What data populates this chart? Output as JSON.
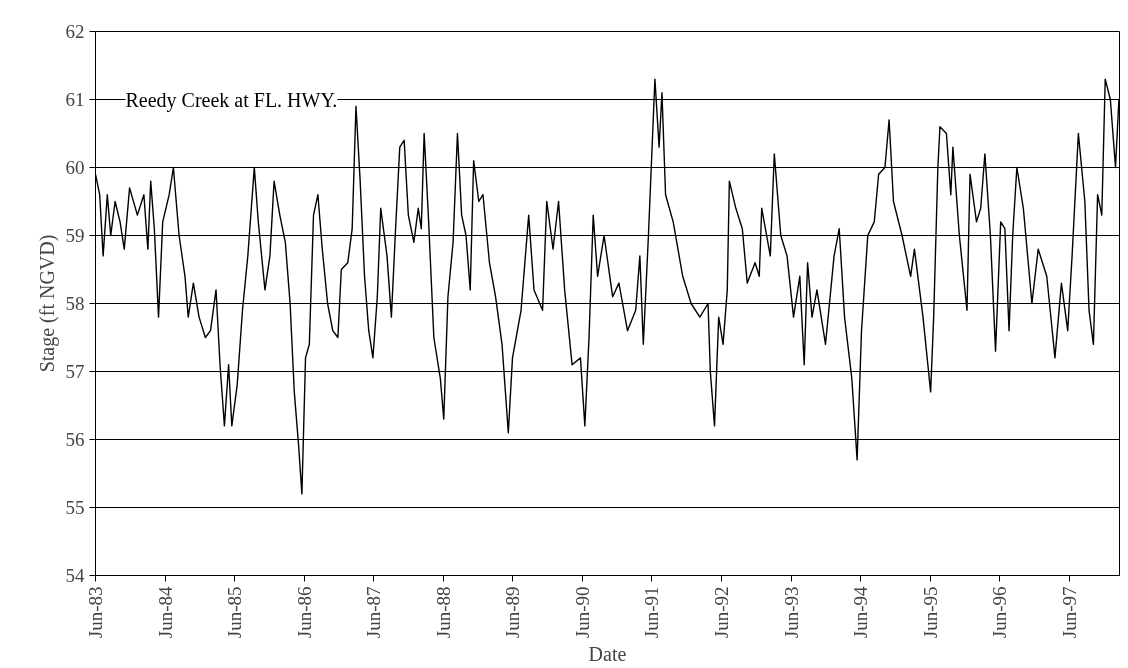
{
  "chart_data": {
    "type": "line",
    "title": "Reedy Creek at FL. HWY.",
    "xlabel": "Date",
    "ylabel": "Stage (ft NGVD)",
    "color": "#000000",
    "grid": "y",
    "xlim": [
      "1983-06-01",
      "1998-02-20"
    ],
    "ylim": [
      54,
      62
    ],
    "yticks": [
      54,
      55,
      56,
      57,
      58,
      59,
      60,
      61,
      62
    ],
    "xticks": [
      {
        "value": "1983-06-01",
        "label": "Jun-83"
      },
      {
        "value": "1984-06-01",
        "label": "Jun-84"
      },
      {
        "value": "1985-06-01",
        "label": "Jun-85"
      },
      {
        "value": "1986-06-01",
        "label": "Jun-86"
      },
      {
        "value": "1987-06-01",
        "label": "Jun-87"
      },
      {
        "value": "1988-06-01",
        "label": "Jun-88"
      },
      {
        "value": "1989-06-01",
        "label": "Jun-89"
      },
      {
        "value": "1990-06-01",
        "label": "Jun-90"
      },
      {
        "value": "1991-06-01",
        "label": "Jun-91"
      },
      {
        "value": "1992-06-01",
        "label": "Jun-92"
      },
      {
        "value": "1993-06-01",
        "label": "Jun-93"
      },
      {
        "value": "1994-06-01",
        "label": "Jun-94"
      },
      {
        "value": "1995-06-01",
        "label": "Jun-95"
      },
      {
        "value": "1996-06-01",
        "label": "Jun-96"
      },
      {
        "value": "1997-06-01",
        "label": "Jun-97"
      }
    ],
    "x": [
      "1983-06-01",
      "1983-06-23",
      "1983-07-11",
      "1983-08-02",
      "1983-08-20",
      "1983-09-12",
      "1983-10-08",
      "1983-10-30",
      "1983-11-27",
      "1984-01-07",
      "1984-02-10",
      "1984-03-02",
      "1984-03-17",
      "1984-04-05",
      "1984-04-27",
      "1984-05-19",
      "1984-06-22",
      "1984-07-14",
      "1984-08-13",
      "1984-09-13",
      "1984-09-30",
      "1984-10-27",
      "1984-11-26",
      "1984-12-29",
      "1985-01-25",
      "1985-02-23",
      "1985-03-16",
      "1985-04-08",
      "1985-04-30",
      "1985-05-17",
      "1985-06-14",
      "1985-07-12",
      "1985-08-09",
      "1985-09-12",
      "1985-10-03",
      "1985-11-07",
      "1985-12-03",
      "1985-12-25",
      "1986-01-24",
      "1986-02-22",
      "1986-03-19",
      "1986-04-10",
      "1986-05-03",
      "1986-05-20",
      "1986-06-08",
      "1986-06-28",
      "1986-07-20",
      "1986-08-12",
      "1986-09-04",
      "1986-10-02",
      "1986-10-29",
      "1986-11-25",
      "1986-12-13",
      "1987-01-16",
      "1987-02-08",
      "1987-02-28",
      "1987-03-22",
      "1987-04-14",
      "1987-05-06",
      "1987-05-28",
      "1987-06-20",
      "1987-07-08",
      "1987-08-10",
      "1987-09-02",
      "1987-09-24",
      "1987-10-16",
      "1987-11-08",
      "1987-11-30",
      "1987-12-29",
      "1988-01-21",
      "1988-02-06",
      "1988-02-21",
      "1988-03-14",
      "1988-04-12",
      "1988-05-16",
      "1988-06-03",
      "1988-06-25",
      "1988-07-22",
      "1988-08-14",
      "1988-09-05",
      "1988-09-28",
      "1988-10-20",
      "1988-11-07",
      "1988-12-04",
      "1988-12-26",
      "1989-01-29",
      "1989-03-02",
      "1989-04-05",
      "1989-05-08",
      "1989-05-30",
      "1989-07-14",
      "1989-08-23",
      "1989-09-20",
      "1989-11-04",
      "1989-11-26",
      "1989-12-29",
      "1990-01-27",
      "1990-02-28",
      "1990-04-08",
      "1990-05-22",
      "1990-06-14",
      "1990-07-06",
      "1990-07-28",
      "1990-08-20",
      "1990-09-23",
      "1990-11-07",
      "1990-12-10",
      "1991-01-24",
      "1991-03-08",
      "1991-03-30",
      "1991-04-17",
      "1991-05-14",
      "1991-06-17",
      "1991-07-09",
      "1991-07-24",
      "1991-08-12",
      "1991-09-21",
      "1991-11-10",
      "1991-12-24",
      "1992-02-08",
      "1992-03-22",
      "1992-04-03",
      "1992-04-25",
      "1992-05-17",
      "1992-06-09",
      "1992-07-01",
      "1992-07-12",
      "1992-08-15",
      "1992-09-18",
      "1992-10-14",
      "1992-11-24",
      "1992-12-16",
      "1992-12-29",
      "1993-02-12",
      "1993-03-05",
      "1993-04-08",
      "1993-05-11",
      "1993-06-14",
      "1993-07-17",
      "1993-08-09",
      "1993-08-27",
      "1993-09-19",
      "1993-10-15",
      "1993-11-29",
      "1994-01-13",
      "1994-02-09",
      "1994-03-09",
      "1994-04-16",
      "1994-05-14",
      "1994-06-06",
      "1994-07-09",
      "1994-08-12",
      "1994-09-04",
      "1994-10-07",
      "1994-10-29",
      "1994-11-21",
      "1995-01-05",
      "1995-02-19",
      "1995-03-11",
      "1995-04-25",
      "1995-06-04",
      "1995-06-20",
      "1995-07-12",
      "1995-07-23",
      "1995-08-26",
      "1995-09-18",
      "1995-09-29",
      "1995-11-02",
      "1995-12-12",
      "1995-12-28",
      "1996-01-31",
      "1996-02-22",
      "1996-03-15",
      "1996-04-13",
      "1996-05-10",
      "1996-06-06",
      "1996-06-28",
      "1996-07-20",
      "1996-08-08",
      "1996-08-30",
      "1996-10-03",
      "1996-11-17",
      "1996-12-20",
      "1997-02-03",
      "1997-03-18",
      "1997-04-21",
      "1997-05-24",
      "1997-06-16",
      "1997-07-19",
      "1997-08-22",
      "1997-09-13",
      "1997-10-06",
      "1997-10-28",
      "1997-11-19",
      "1997-12-07",
      "1998-01-03",
      "1998-01-30",
      "1998-02-17"
    ],
    "values": [
      59.9,
      59.6,
      58.7,
      59.6,
      59.0,
      59.5,
      59.2,
      58.8,
      59.7,
      59.3,
      59.6,
      58.8,
      59.8,
      59.1,
      57.8,
      59.2,
      59.6,
      60.0,
      59.0,
      58.4,
      57.8,
      58.3,
      57.8,
      57.5,
      57.6,
      58.2,
      57.1,
      56.2,
      57.1,
      56.2,
      56.8,
      57.9,
      58.7,
      60.0,
      59.2,
      58.2,
      58.7,
      59.8,
      59.3,
      58.9,
      58.0,
      56.7,
      55.9,
      55.2,
      57.2,
      57.4,
      59.3,
      59.6,
      58.8,
      58.0,
      57.6,
      57.5,
      58.5,
      58.6,
      59.1,
      60.9,
      59.8,
      58.4,
      57.6,
      57.2,
      58.1,
      59.4,
      58.7,
      57.8,
      59.1,
      60.3,
      60.4,
      59.3,
      58.9,
      59.4,
      59.1,
      60.5,
      59.3,
      57.5,
      56.9,
      56.3,
      58.1,
      58.9,
      60.5,
      59.3,
      59.0,
      58.2,
      60.1,
      59.5,
      59.6,
      58.6,
      58.1,
      57.4,
      56.1,
      57.2,
      57.9,
      59.3,
      58.2,
      57.9,
      59.5,
      58.8,
      59.5,
      58.2,
      57.1,
      57.2,
      56.2,
      57.5,
      59.3,
      58.4,
      59.0,
      58.1,
      58.3,
      57.6,
      57.9,
      58.7,
      57.4,
      59.0,
      61.3,
      60.3,
      61.1,
      59.6,
      59.2,
      58.4,
      58.0,
      57.8,
      58.0,
      57.0,
      56.2,
      57.8,
      57.4,
      58.2,
      59.8,
      59.4,
      59.1,
      58.3,
      58.6,
      58.4,
      59.4,
      58.7,
      60.2,
      59.0,
      58.7,
      57.8,
      58.4,
      57.1,
      58.6,
      57.8,
      58.2,
      57.4,
      58.7,
      59.1,
      57.8,
      56.9,
      55.7,
      57.6,
      59.0,
      59.2,
      59.9,
      60.0,
      60.7,
      59.5,
      59.0,
      58.4,
      58.8,
      57.8,
      56.7,
      57.8,
      60.0,
      60.6,
      60.5,
      59.6,
      60.3,
      59.0,
      57.9,
      59.9,
      59.2,
      59.4,
      60.2,
      59.0,
      57.3,
      59.2,
      59.1,
      57.6,
      59.0,
      60.0,
      59.4,
      58.0,
      58.8,
      58.4,
      57.2,
      58.3,
      57.6,
      58.7,
      60.5,
      59.5,
      57.9,
      57.4,
      59.6,
      59.3,
      61.3,
      61.0,
      60.0,
      61.0
    ]
  }
}
